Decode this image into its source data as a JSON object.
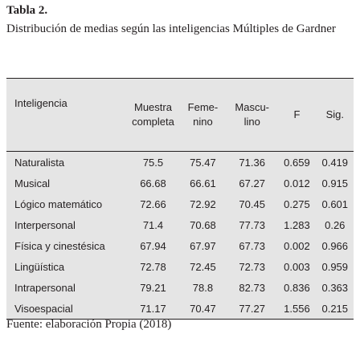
{
  "title": "Tabla 2.",
  "caption": "Distribución de medias según las inteligencias Múltiples de Gardner",
  "table": {
    "header": [
      "Inteligencia",
      "Muestra completa",
      "Feme- nino",
      "Mascu- lino",
      "F",
      "Sig."
    ],
    "rows": [
      [
        "Naturalista",
        "75.5",
        "75.47",
        "71.36",
        "0.659",
        "0.419"
      ],
      [
        "Musical",
        "66.68",
        "66.61",
        "67.27",
        "0.012",
        "0.915"
      ],
      [
        "Lógico matemático",
        "72.66",
        "72.92",
        "70.45",
        "0.275",
        "0.601"
      ],
      [
        "Interpersonal",
        "71.4",
        "70.68",
        "77.73",
        "1.283",
        "0.26"
      ],
      [
        "Física y cinestésica",
        "67.94",
        "67.97",
        "67.73",
        "0.002",
        "0.966"
      ],
      [
        "Lingüística",
        "72.78",
        "72.45",
        "72.73",
        "0.003",
        "0.959"
      ],
      [
        "Intrapersonal",
        "79.21",
        "78.8",
        "82.73",
        "0.836",
        "0.363"
      ],
      [
        "Visoespacial",
        "71.17",
        "70.47",
        "77.27",
        "1.556",
        "0.215"
      ]
    ]
  },
  "source": "Fuente: elaboración Propia (2018)"
}
